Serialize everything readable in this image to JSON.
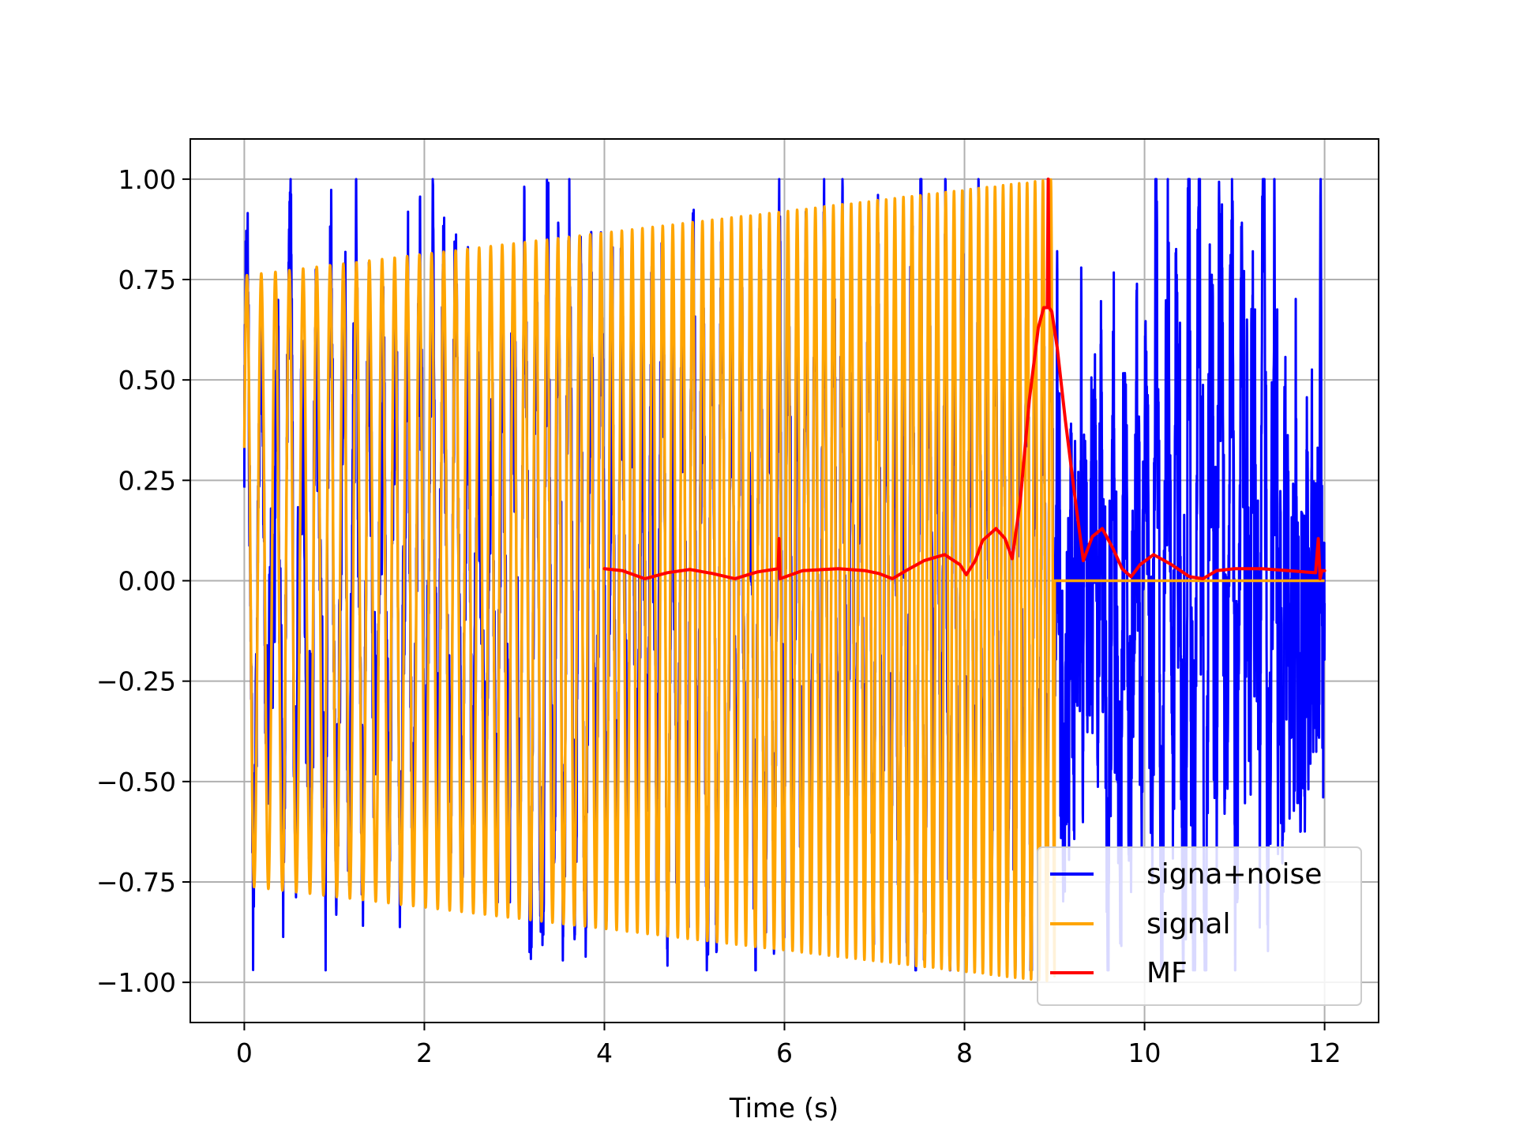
{
  "chart_data": {
    "type": "line",
    "title": "",
    "xlabel": "Time (s)",
    "ylabel": "",
    "xlim": [
      -0.6,
      12.6
    ],
    "ylim": [
      -1.1,
      1.1
    ],
    "xticks": [
      0,
      2,
      4,
      6,
      8,
      10,
      12
    ],
    "xtick_labels": [
      "0",
      "2",
      "4",
      "6",
      "8",
      "10",
      "12"
    ],
    "yticks": [
      1.0,
      0.75,
      0.5,
      0.25,
      0.0,
      -0.25,
      -0.5,
      -0.75,
      -1.0
    ],
    "ytick_labels": [
      "1.00",
      "0.75",
      "0.50",
      "0.25",
      "0.00",
      "−0.25",
      "−0.50",
      "−0.75",
      "−1.00"
    ],
    "grid": true,
    "legend_position": "lower-right",
    "series": [
      {
        "name": "signa+noise",
        "color": "#0000ff",
        "description": "chirp signal (t 0–9 s) plus noise, noise only t 9–12 s",
        "x_range": [
          0,
          12
        ],
        "peak_max": 1.0,
        "peak_min": -0.97
      },
      {
        "name": "signal",
        "color": "#ffa500",
        "description": "linear chirp, amplitude growing from 0.76 to 1.0, zero after t = 9 s",
        "x_range": [
          0,
          12
        ],
        "amplitude_start": 0.76,
        "amplitude_end": 1.0,
        "active_until": 9.0
      },
      {
        "name": "MF",
        "color": "#ff0000",
        "description": "matched filter output, peak near t = 8.93 s",
        "x_range": [
          4,
          12
        ],
        "x": [
          4.0,
          4.2,
          4.45,
          4.7,
          4.95,
          5.2,
          5.45,
          5.7,
          5.93,
          5.94,
          5.95,
          6.2,
          6.6,
          6.9,
          7.05,
          7.2,
          7.35,
          7.55,
          7.78,
          7.95,
          8.02,
          8.12,
          8.2,
          8.35,
          8.45,
          8.53,
          8.62,
          8.72,
          8.82,
          8.88,
          8.92,
          8.93,
          8.94,
          8.97,
          9.03,
          9.12,
          9.22,
          9.32,
          9.42,
          9.53,
          9.65,
          9.75,
          9.85,
          9.95,
          10.1,
          10.3,
          10.5,
          10.65,
          10.8,
          11.0,
          11.3,
          11.6,
          11.9,
          11.93,
          11.95,
          11.97,
          12.0
        ],
        "y": [
          0.03,
          0.025,
          0.005,
          0.02,
          0.028,
          0.018,
          0.005,
          0.022,
          0.03,
          0.105,
          0.005,
          0.025,
          0.03,
          0.025,
          0.018,
          0.005,
          0.025,
          0.05,
          0.065,
          0.04,
          0.015,
          0.05,
          0.1,
          0.13,
          0.105,
          0.055,
          0.2,
          0.45,
          0.63,
          0.68,
          0.68,
          1.0,
          0.68,
          0.67,
          0.58,
          0.4,
          0.22,
          0.05,
          0.11,
          0.13,
          0.08,
          0.03,
          0.01,
          0.04,
          0.065,
          0.04,
          0.01,
          0.005,
          0.025,
          0.03,
          0.03,
          0.025,
          0.02,
          0.105,
          0.005,
          0.025,
          0.025
        ]
      }
    ]
  }
}
